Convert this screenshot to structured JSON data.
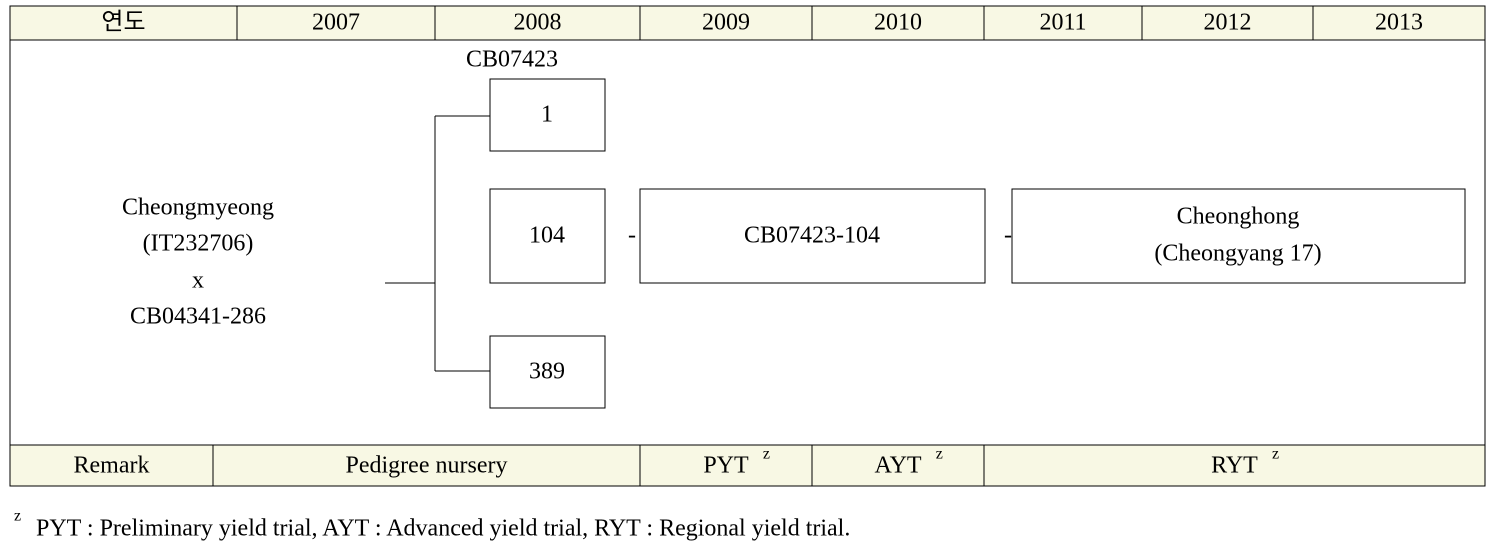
{
  "header": {
    "cells": [
      "연도",
      "2007",
      "2008",
      "2009",
      "2010",
      "2011",
      "2012",
      "2013"
    ]
  },
  "diagram": {
    "cross": [
      "Cheongmyeong",
      "(IT232706)",
      "x",
      "CB04341-286"
    ],
    "line_label": "CB07423",
    "selections": [
      "1",
      "104",
      "389"
    ],
    "connectors": [
      "-",
      "-"
    ],
    "advanced_line": "CB07423-104",
    "cultivar": [
      "Cheonghong",
      "(Cheongyang  17)"
    ]
  },
  "remark_row": {
    "cells": [
      {
        "text": "Remark"
      },
      {
        "text": "Pedigree  nursery"
      },
      {
        "text": "PYT",
        "note": "z"
      },
      {
        "text": "AYT",
        "note": "z"
      },
      {
        "text": "RYT",
        "note": "z"
      }
    ]
  },
  "footnote": {
    "marker": "z",
    "text": "PYT  :  Preliminary  yield  trial,  AYT  :  Advanced  yield  trial,  RYT  :  Regional  yield  trial."
  }
}
